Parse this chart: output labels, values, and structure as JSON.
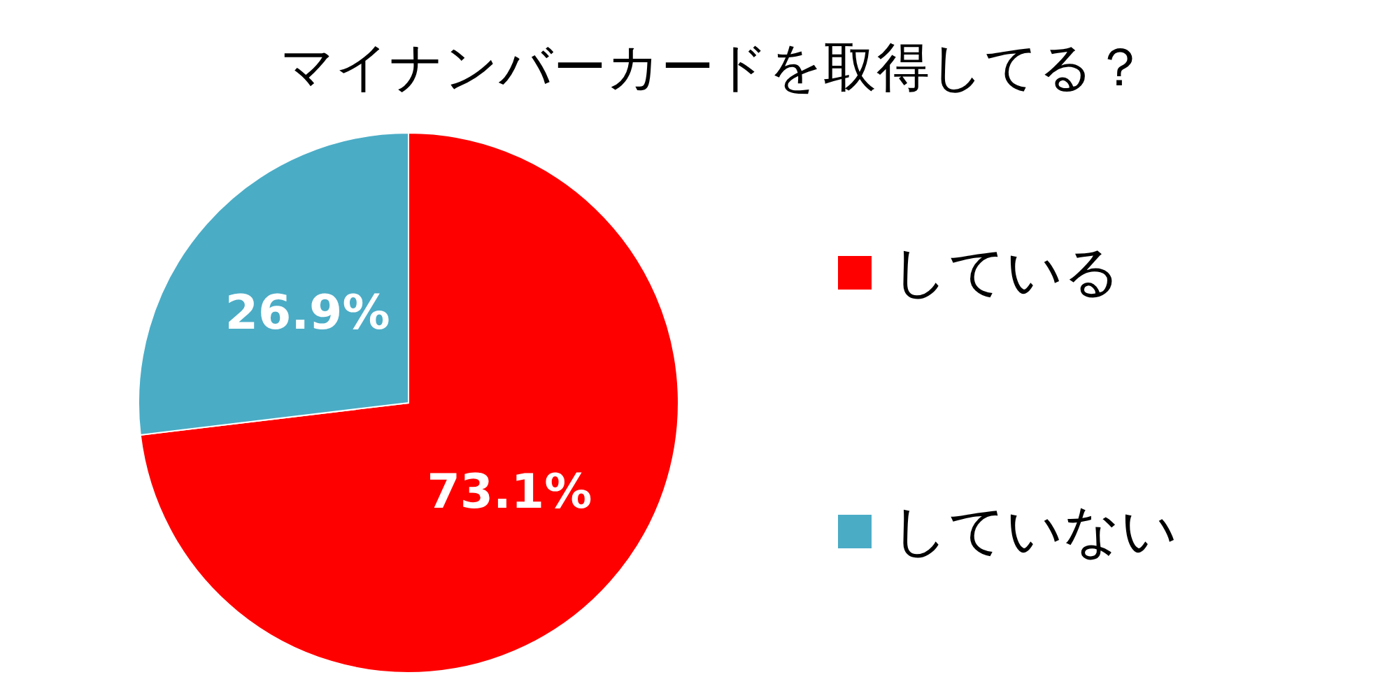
{
  "chart_data": {
    "type": "pie",
    "title": "マイナンバーカードを取得してる？",
    "categories": [
      "している",
      "していない"
    ],
    "values": [
      73.1,
      26.9
    ],
    "colors": [
      "#ff0000",
      "#4bacc6"
    ],
    "value_labels": [
      "73.1%",
      "26.9%"
    ],
    "legend": "right"
  }
}
